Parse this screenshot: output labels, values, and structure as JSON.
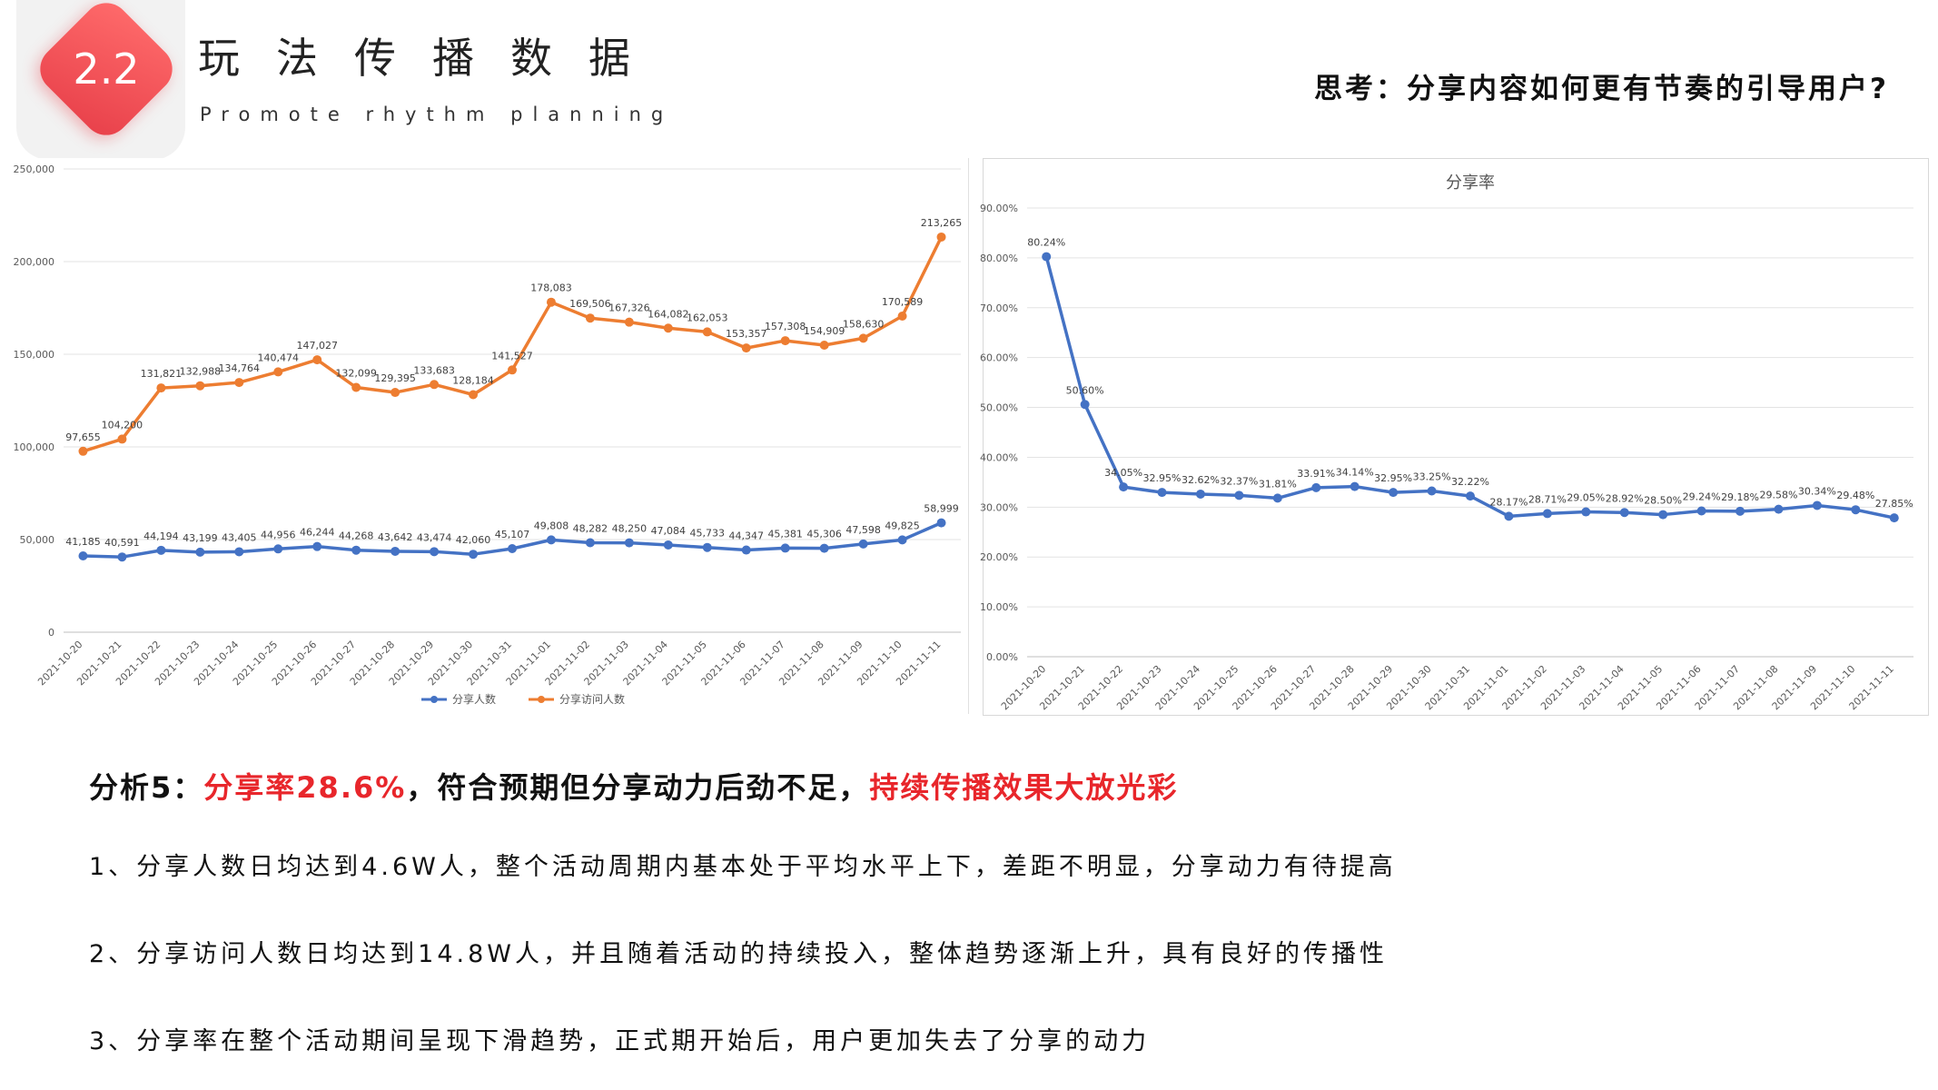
{
  "header": {
    "badge": "2.2",
    "title": "玩法传播数据",
    "subtitle": "Promote rhythm planning",
    "question": "思考：分享内容如何更有节奏的引导用户?"
  },
  "analysis": {
    "prefix": "分析5：",
    "highlight1": "分享率28.6%",
    "middle": "，符合预期但分享动力后劲不足，",
    "highlight2": "持续传播效果大放光彩",
    "points": [
      "1、分享人数日均达到4.6W人，整个活动周期内基本处于平均水平上下，差距不明显，分享动力有待提高",
      "2、分享访问人数日均达到14.8W人，并且随着活动的持续投入，整体趋势逐渐上升，具有良好的传播性",
      "3、分享率在整个活动期间呈现下滑趋势，正式期开始后，用户更加失去了分享的动力"
    ]
  },
  "colors": {
    "accent_red": "#e8262b",
    "series_blue": "#4472c4",
    "series_orange": "#ed7d31"
  },
  "chart_data": [
    {
      "type": "line",
      "title": "",
      "x": [
        "2021-10-20",
        "2021-10-21",
        "2021-10-22",
        "2021-10-23",
        "2021-10-24",
        "2021-10-25",
        "2021-10-26",
        "2021-10-27",
        "2021-10-28",
        "2021-10-29",
        "2021-10-30",
        "2021-10-31",
        "2021-11-01",
        "2021-11-02",
        "2021-11-03",
        "2021-11-04",
        "2021-11-05",
        "2021-11-06",
        "2021-11-07",
        "2021-11-08",
        "2021-11-09",
        "2021-11-10",
        "2021-11-11"
      ],
      "series": [
        {
          "name": "分享人数",
          "color": "#4472c4",
          "values": [
            41185,
            40591,
            44194,
            43199,
            43405,
            44956,
            46244,
            44268,
            43642,
            43474,
            42060,
            45107,
            49808,
            48282,
            48250,
            47084,
            45733,
            44347,
            45381,
            45306,
            47598,
            49825,
            58999
          ],
          "labels": [
            "41,185",
            "40,591",
            "44,194",
            "43,199",
            "43,405",
            "44,956",
            "46,244",
            "44,268",
            "43,642",
            "43,474",
            "42,060",
            "45,107",
            "49,808",
            "48,282",
            "48,250",
            "47,084",
            "45,733",
            "44,347",
            "45,381",
            "45,306",
            "47,598",
            "49,825",
            "58,999"
          ]
        },
        {
          "name": "分享访问人数",
          "color": "#ed7d31",
          "values": [
            97655,
            104200,
            131821,
            132988,
            134764,
            140474,
            147027,
            132099,
            129395,
            133683,
            128184,
            141527,
            178083,
            169506,
            167326,
            164082,
            162053,
            153357,
            157308,
            154909,
            158630,
            170589,
            213265
          ],
          "labels": [
            "97,655",
            "104,200",
            "131,821",
            "132,988",
            "134,764",
            "140,474",
            "147,027",
            "132,099",
            "129,395",
            "133,683",
            "128,184",
            "141,527",
            "178,083",
            "169,506",
            "167,326",
            "164,082",
            "162,053",
            "153,357",
            "157,308",
            "154,909",
            "158,630",
            "170,589",
            "213,265"
          ]
        }
      ],
      "ylim": [
        0,
        250000
      ],
      "yticks": [
        "0",
        "50,000",
        "100,000",
        "150,000",
        "200,000",
        "250,000"
      ],
      "grid": true,
      "legend": "bottom"
    },
    {
      "type": "line",
      "title": "分享率",
      "x": [
        "2021-10-20",
        "2021-10-21",
        "2021-10-22",
        "2021-10-23",
        "2021-10-24",
        "2021-10-25",
        "2021-10-26",
        "2021-10-27",
        "2021-10-28",
        "2021-10-29",
        "2021-10-30",
        "2021-10-31",
        "2021-11-01",
        "2021-11-02",
        "2021-11-03",
        "2021-11-04",
        "2021-11-05",
        "2021-11-06",
        "2021-11-07",
        "2021-11-08",
        "2021-11-09",
        "2021-11-10",
        "2021-11-11"
      ],
      "series": [
        {
          "color": "#4472c4",
          "values": [
            80.24,
            50.6,
            34.05,
            32.95,
            32.62,
            32.37,
            31.81,
            33.91,
            34.14,
            32.95,
            33.25,
            32.22,
            28.17,
            28.71,
            29.05,
            28.92,
            28.5,
            29.24,
            29.18,
            29.58,
            30.34,
            29.48,
            27.85
          ],
          "labels": [
            "80.24%",
            "50.60%",
            "34.05%",
            "32.95%",
            "32.62%",
            "32.37%",
            "31.81%",
            "33.91%",
            "34.14%",
            "32.95%",
            "33.25%",
            "32.22%",
            "28.17%",
            "28.71%",
            "29.05%",
            "28.92%",
            "28.50%",
            "29.24%",
            "29.18%",
            "29.58%",
            "30.34%",
            "29.48%",
            "27.85%"
          ]
        }
      ],
      "ylim": [
        0,
        90
      ],
      "yticks": [
        "0.00%",
        "10.00%",
        "20.00%",
        "30.00%",
        "40.00%",
        "50.00%",
        "60.00%",
        "70.00%",
        "80.00%",
        "90.00%"
      ],
      "grid": true,
      "legend": "none"
    }
  ]
}
